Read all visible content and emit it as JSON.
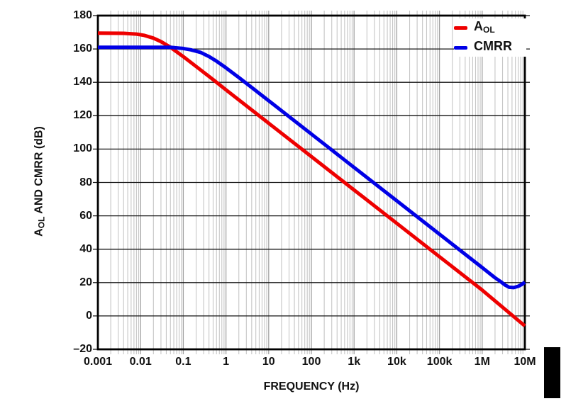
{
  "figure": {
    "background": "#ffffff",
    "grid_minor_color": "#c6c6c6",
    "grid_major_vertical_color": "#a2a2a2",
    "grid_horizontal_color": "#141414",
    "border_color": "#000000"
  },
  "legend": {
    "items": [
      {
        "label_main": "A",
        "label_sub": "OL",
        "color": "#ee0000"
      },
      {
        "label_main": "CMRR",
        "label_sub": "",
        "color": "#0000e6"
      }
    ]
  },
  "chart_data": {
    "type": "line",
    "title": "",
    "xlabel": "FREQUENCY (Hz)",
    "ylabel_parts": {
      "main": "A",
      "sub": "OL",
      "rest": " AND CMRR (dB)"
    },
    "x_scale": "log",
    "x_range_hz": [
      0.001,
      10000000
    ],
    "x_tick_labels": [
      "0.001",
      "0.01",
      "0.1",
      "1",
      "10",
      "100",
      "1k",
      "10k",
      "100k",
      "1M",
      "10M"
    ],
    "x_tick_values": [
      0.001,
      0.01,
      0.1,
      1,
      10,
      100,
      1000,
      10000,
      100000,
      1000000,
      10000000
    ],
    "ylim": [
      -20,
      180
    ],
    "y_tick_step": 20,
    "y_tick_labels": [
      "180",
      "160",
      "140",
      "120",
      "100",
      "80",
      "60",
      "40",
      "20",
      "0",
      "–20"
    ],
    "y_tick_values": [
      180,
      160,
      140,
      120,
      100,
      80,
      60,
      40,
      20,
      0,
      -20
    ],
    "grid": {
      "vertical_minor": true,
      "vertical_major": true,
      "horizontal_major": true,
      "legend_position": "top-right"
    },
    "series": [
      {
        "name": "AOL",
        "color": "#ee0000",
        "points": [
          [
            0.001,
            169.5
          ],
          [
            0.004,
            169.4
          ],
          [
            0.008,
            168.9
          ],
          [
            0.012,
            168.2
          ],
          [
            0.02,
            166.5
          ],
          [
            0.03,
            164.4
          ],
          [
            0.05,
            161.0
          ],
          [
            0.08,
            157.2
          ],
          [
            0.1,
            155.4
          ],
          [
            0.2,
            149.5
          ],
          [
            0.5,
            141.6
          ],
          [
            1,
            135.5
          ],
          [
            10,
            115.5
          ],
          [
            100,
            95.5
          ],
          [
            1000,
            75.5
          ],
          [
            10000,
            55.5
          ],
          [
            100000,
            35.5
          ],
          [
            1000000,
            15.5
          ],
          [
            10000000,
            -6.0
          ]
        ]
      },
      {
        "name": "CMRR",
        "color": "#0000e6",
        "points": [
          [
            0.001,
            161
          ],
          [
            0.05,
            161
          ],
          [
            0.1,
            160.3
          ],
          [
            0.15,
            159.5
          ],
          [
            0.25,
            158.0
          ],
          [
            0.4,
            155.5
          ],
          [
            0.6,
            152.7
          ],
          [
            1,
            148.7
          ],
          [
            2,
            142.9
          ],
          [
            5,
            135.0
          ],
          [
            10,
            129.0
          ],
          [
            100,
            109.0
          ],
          [
            1000,
            89.0
          ],
          [
            10000,
            69.0
          ],
          [
            100000,
            49.0
          ],
          [
            1000000,
            29.0
          ],
          [
            2000000,
            22.9
          ],
          [
            2800000,
            20.3
          ],
          [
            3500000,
            18.4
          ],
          [
            4300000,
            17.2
          ],
          [
            5500000,
            17.0
          ],
          [
            7000000,
            17.8
          ],
          [
            8500000,
            18.9
          ],
          [
            10000000,
            20.3
          ]
        ]
      }
    ]
  }
}
